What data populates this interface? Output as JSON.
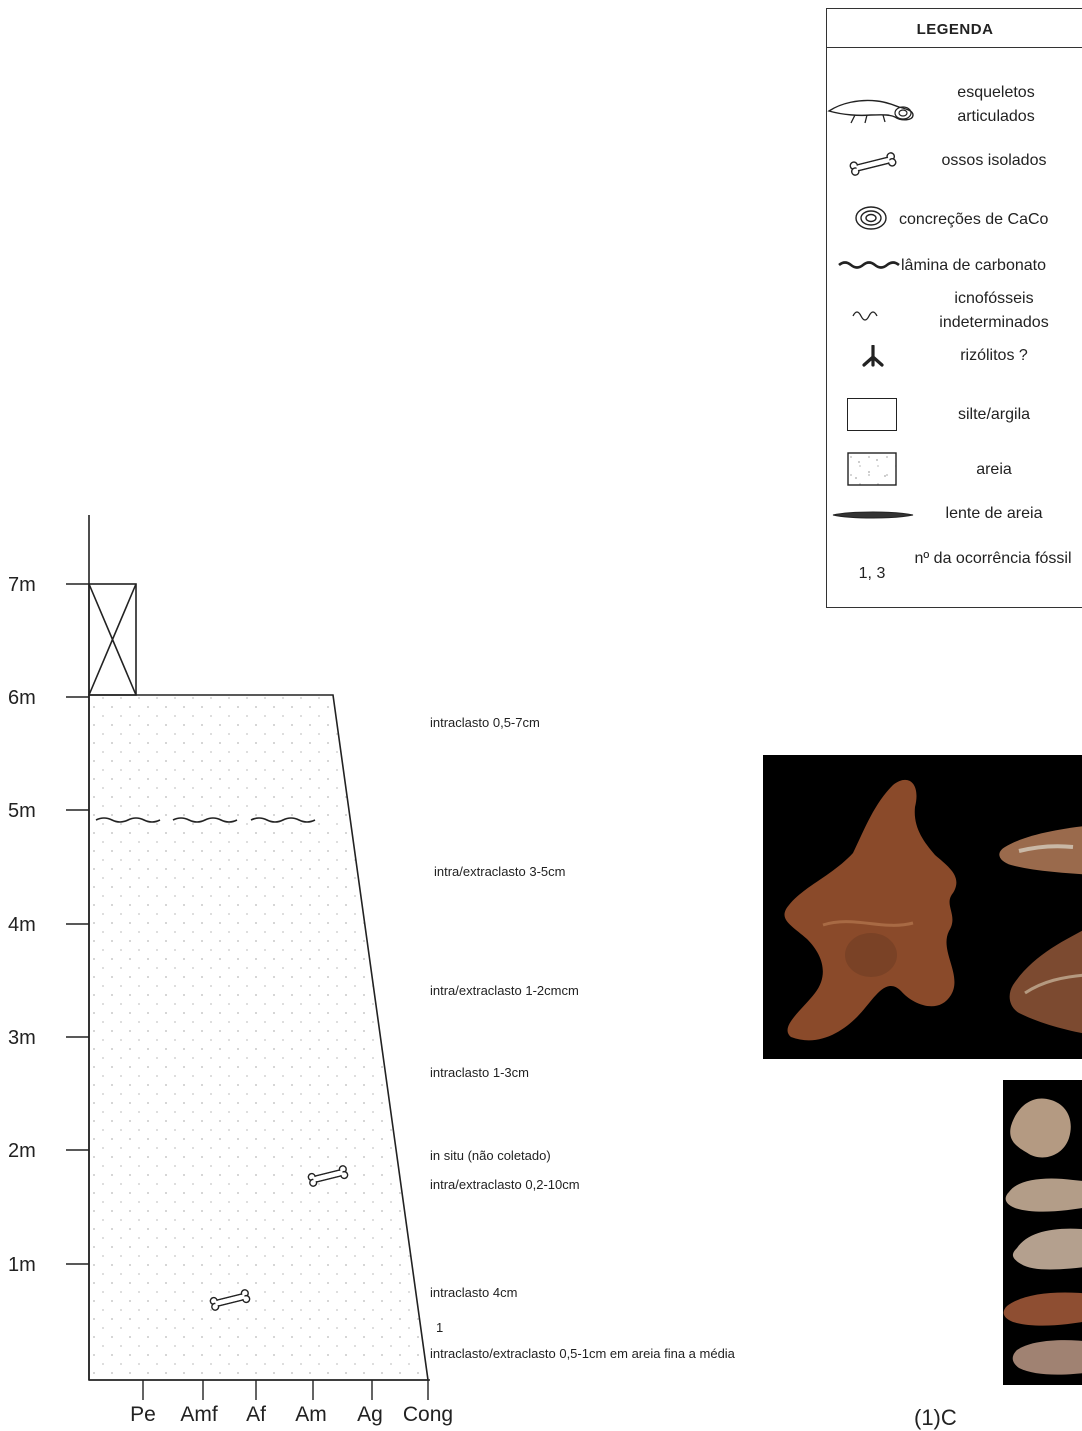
{
  "section": {
    "y_ticks": [
      "7m",
      "6m",
      "5m",
      "4m",
      "3m",
      "2m",
      "1m"
    ],
    "x_ticks": [
      "Pe",
      "Amf",
      "Af",
      "Am",
      "Ag",
      "Cong"
    ],
    "annotations": [
      "intraclasto 0,5-7cm",
      "intra/extraclasto 3-5cm",
      "intra/extraclasto 1-2cmcm",
      "intraclasto 1-3cm",
      "in situ (não coletado)",
      "intra/extraclasto 0,2-10cm",
      "intraclasto 4cm",
      "1",
      "intraclasto/extraclasto 0,5-1cm em areia fina a média"
    ]
  },
  "legend": {
    "title": "LEGENDA",
    "items": {
      "skeletons": "esqueletos articulados",
      "bones": "ossos isolados",
      "concretions": "concreções de CaCo",
      "carbonate": "lâmina de carbonato",
      "ichno": "icnofósseis indeterminados",
      "rhizo": "rizólitos ?",
      "silt": "silte/argila",
      "sand": "areia",
      "lens": "lente  de areia",
      "occurrence_num": "1, 3",
      "occurrence": "nº da ocorrência fóssil"
    }
  },
  "caption": "(1)C",
  "colors": {
    "line": "#222222",
    "dots": "#b9b9b9",
    "fossil": "#8a4a2a",
    "photo_bg": "#000000"
  }
}
